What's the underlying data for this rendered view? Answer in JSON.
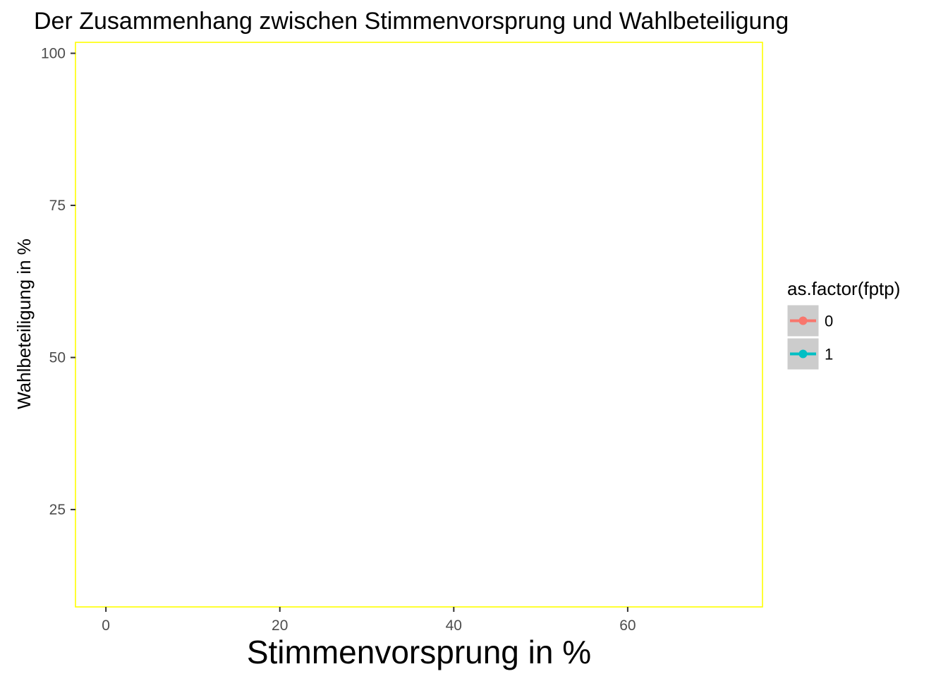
{
  "chart_data": {
    "type": "line",
    "title": "Der Zusammenhang zwischen Stimmenvorsprung und Wahlbeteiligung",
    "xlabel": "Stimmenvorsprung in %",
    "ylabel": "Wahlbeteiligung in %",
    "xlim": [
      -3.5,
      75.5
    ],
    "ylim": [
      9,
      101.8
    ],
    "x_ticks": [
      0,
      20,
      40,
      60
    ],
    "y_ticks": [
      25,
      50,
      75,
      100
    ],
    "grid": false,
    "panel_border_color": "#FFFF00",
    "legend": {
      "title": "as.factor(fptp)",
      "position": "right",
      "items": [
        {
          "label": "0",
          "color": "#F8766D"
        },
        {
          "label": "1",
          "color": "#00BFC4"
        }
      ]
    },
    "series": [
      {
        "name": "0",
        "color": "#F8766D",
        "points": []
      },
      {
        "name": "1",
        "color": "#00BFC4",
        "points": []
      }
    ]
  }
}
